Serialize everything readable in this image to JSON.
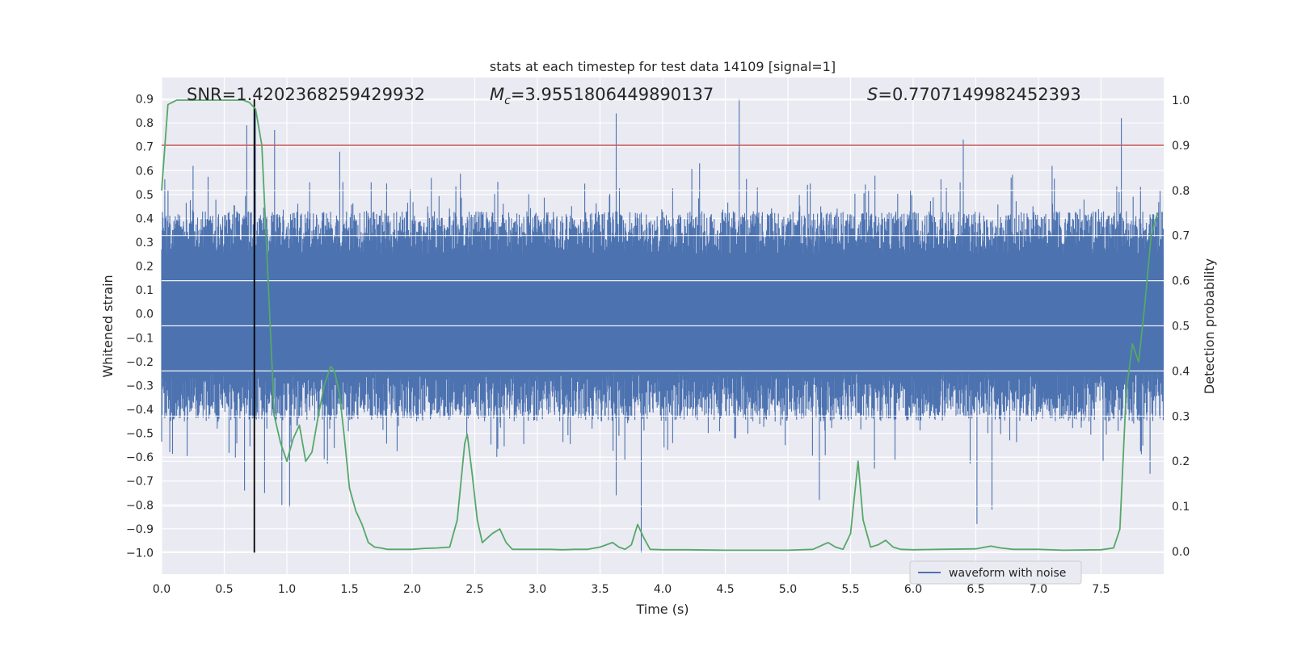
{
  "chart_data": {
    "type": "line",
    "title": "stats at each timestep for test data 14109 [signal=1]",
    "xlabel": "Time (s)",
    "ylabel_left": "Whitened strain",
    "ylabel_right": "Detection probability",
    "xlim": [
      0,
      8
    ],
    "ylim_left": [
      -1.09,
      0.99
    ],
    "ylim_right": [
      -0.05,
      1.05
    ],
    "x_ticks": [
      "0.0",
      "0.5",
      "1.0",
      "1.5",
      "2.0",
      "2.5",
      "3.0",
      "3.5",
      "4.0",
      "4.5",
      "5.0",
      "5.5",
      "6.0",
      "6.5",
      "7.0",
      "7.5"
    ],
    "y_left_ticks": [
      "−1.0",
      "−0.9",
      "−0.8",
      "−0.7",
      "−0.6",
      "−0.5",
      "−0.4",
      "−0.3",
      "−0.2",
      "−0.1",
      "0.0",
      "0.1",
      "0.2",
      "0.3",
      "0.4",
      "0.5",
      "0.6",
      "0.7",
      "0.8",
      "0.9"
    ],
    "y_right_ticks": [
      "0.0",
      "0.1",
      "0.2",
      "0.3",
      "0.4",
      "0.5",
      "0.6",
      "0.7",
      "0.8",
      "0.9",
      "1.0"
    ],
    "annotations": {
      "snr": "SNR=1.4202368259429932",
      "mc_symbol": "M",
      "mc_sub": "c",
      "mc_value": "=3.9551806449890137",
      "s_symbol": "S",
      "s_value": "=0.7707149982452393"
    },
    "threshold_line": {
      "axis": "right",
      "value": 0.9,
      "color": "#c44e52"
    },
    "vertical_marker": {
      "x": 0.74,
      "y_from": -1.0,
      "y_to": 0.9,
      "color": "#000000"
    },
    "legend": {
      "label": "waveform with noise",
      "location": "lower-right"
    },
    "series": [
      {
        "name": "waveform with noise",
        "axis": "left",
        "color": "#4c72b0",
        "description": "dense noisy strain, typical envelope about ±0.45",
        "peaks": [
          {
            "x": 0.05,
            "y": 0.52
          },
          {
            "x": 0.25,
            "y": 0.62
          },
          {
            "x": 0.68,
            "y": 0.79
          },
          {
            "x": 0.75,
            "y": 0.85
          },
          {
            "x": 0.9,
            "y": 0.77
          },
          {
            "x": 1.42,
            "y": 0.68
          },
          {
            "x": 3.63,
            "y": 0.84
          },
          {
            "x": 4.61,
            "y": 0.9
          },
          {
            "x": 6.4,
            "y": 0.73
          },
          {
            "x": 7.66,
            "y": 0.82
          }
        ],
        "troughs": [
          {
            "x": 0.66,
            "y": -0.74
          },
          {
            "x": 0.82,
            "y": -0.75
          },
          {
            "x": 0.96,
            "y": -0.8
          },
          {
            "x": 1.02,
            "y": -0.81
          },
          {
            "x": 3.83,
            "y": -1.0
          },
          {
            "x": 3.63,
            "y": -0.76
          },
          {
            "x": 5.25,
            "y": -0.78
          },
          {
            "x": 6.51,
            "y": -0.88
          },
          {
            "x": 6.63,
            "y": -0.82
          },
          {
            "x": 7.89,
            "y": -0.67
          }
        ]
      },
      {
        "name": "detection probability",
        "axis": "right",
        "color": "#55a868",
        "x": [
          0.0,
          0.05,
          0.12,
          0.2,
          0.3,
          0.4,
          0.5,
          0.6,
          0.65,
          0.7,
          0.75,
          0.8,
          0.85,
          0.9,
          0.95,
          1.0,
          1.05,
          1.1,
          1.15,
          1.2,
          1.25,
          1.3,
          1.35,
          1.38,
          1.42,
          1.46,
          1.5,
          1.55,
          1.6,
          1.65,
          1.7,
          1.75,
          1.8,
          1.9,
          2.0,
          2.1,
          2.2,
          2.3,
          2.36,
          2.42,
          2.44,
          2.48,
          2.52,
          2.56,
          2.6,
          2.64,
          2.7,
          2.75,
          2.8,
          2.9,
          3.0,
          3.1,
          3.2,
          3.3,
          3.4,
          3.5,
          3.6,
          3.65,
          3.7,
          3.75,
          3.8,
          3.85,
          3.9,
          4.0,
          4.2,
          4.5,
          4.8,
          5.0,
          5.2,
          5.32,
          5.38,
          5.44,
          5.5,
          5.56,
          5.6,
          5.66,
          5.72,
          5.78,
          5.84,
          5.9,
          6.0,
          6.2,
          6.5,
          6.62,
          6.7,
          6.8,
          7.0,
          7.2,
          7.5,
          7.6,
          7.65,
          7.7,
          7.75,
          7.8,
          7.85,
          7.9,
          7.95
        ],
        "y": [
          0.8,
          0.99,
          1.0,
          1.0,
          1.0,
          1.0,
          1.0,
          1.0,
          1.0,
          0.995,
          0.98,
          0.9,
          0.6,
          0.3,
          0.24,
          0.2,
          0.25,
          0.28,
          0.2,
          0.22,
          0.3,
          0.37,
          0.41,
          0.4,
          0.35,
          0.25,
          0.14,
          0.09,
          0.06,
          0.02,
          0.01,
          0.008,
          0.005,
          0.005,
          0.005,
          0.007,
          0.008,
          0.01,
          0.07,
          0.24,
          0.26,
          0.17,
          0.07,
          0.02,
          0.03,
          0.04,
          0.05,
          0.02,
          0.005,
          0.005,
          0.005,
          0.005,
          0.004,
          0.005,
          0.005,
          0.01,
          0.02,
          0.01,
          0.005,
          0.015,
          0.06,
          0.03,
          0.005,
          0.004,
          0.004,
          0.003,
          0.003,
          0.003,
          0.005,
          0.02,
          0.01,
          0.005,
          0.04,
          0.2,
          0.07,
          0.01,
          0.015,
          0.025,
          0.01,
          0.005,
          0.004,
          0.005,
          0.006,
          0.012,
          0.008,
          0.005,
          0.005,
          0.003,
          0.004,
          0.008,
          0.05,
          0.35,
          0.46,
          0.42,
          0.55,
          0.7,
          0.75
        ]
      }
    ]
  }
}
